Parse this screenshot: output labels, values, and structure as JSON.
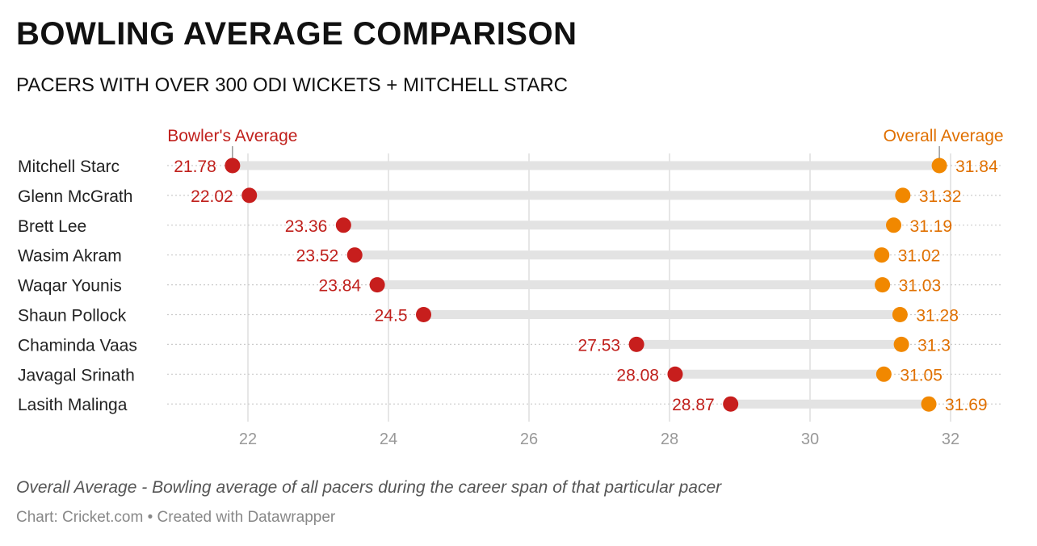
{
  "title": "BOWLING AVERAGE COMPARISON",
  "subtitle": "PACERS WITH OVER 300 ODI WICKETS + MITCHELL STARC",
  "footnote": "Overall Average - Bowling average of all pacers during the career span of that particular pacer",
  "source": "Chart: Cricket.com • Created with Datawrapper",
  "colors": {
    "bowler_dot": "#c71e1d",
    "bowler_text": "#c0201c",
    "overall_dot": "#f18800",
    "overall_text": "#e07000"
  },
  "chart_data": {
    "type": "dot-range",
    "legend": [
      "Bowler's Average",
      "Overall Average"
    ],
    "categories": [
      "Mitchell Starc",
      "Glenn McGrath",
      "Brett Lee",
      "Wasim Akram",
      "Waqar Younis",
      "Shaun Pollock",
      "Chaminda Vaas",
      "Javagal Srinath",
      "Lasith Malinga"
    ],
    "series": [
      {
        "name": "Bowler's Average",
        "values": [
          21.78,
          22.02,
          23.36,
          23.52,
          23.84,
          24.5,
          27.53,
          28.08,
          28.87
        ]
      },
      {
        "name": "Overall Average",
        "values": [
          31.84,
          31.32,
          31.19,
          31.02,
          31.03,
          31.28,
          31.3,
          31.05,
          31.69
        ]
      }
    ],
    "xlim": [
      20.9,
      32.7
    ],
    "xticks": [
      22,
      24,
      26,
      28,
      30,
      32
    ],
    "grid": true
  }
}
